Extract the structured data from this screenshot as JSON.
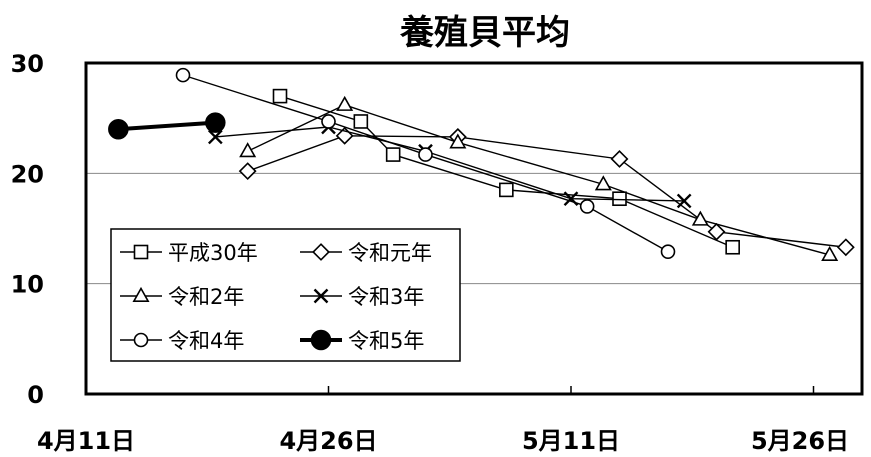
{
  "chart_data": {
    "type": "line",
    "title": "養殖貝平均",
    "xlabel": "",
    "ylabel": "",
    "ylim": [
      0,
      30
    ],
    "yticks": [
      0,
      10,
      20,
      30
    ],
    "xticks": [
      {
        "date": "04-11",
        "label": "4月11日"
      },
      {
        "date": "04-26",
        "label": "4月26日"
      },
      {
        "date": "05-11",
        "label": "5月11日"
      },
      {
        "date": "05-26",
        "label": "5月26日"
      }
    ],
    "xlim": [
      "04-11",
      "05-29"
    ],
    "grid": "horizontal",
    "legend_position": "bottom-left",
    "series": [
      {
        "name": "平成30年",
        "marker": "square",
        "color": "#000000",
        "points": [
          [
            "04-23",
            27.0
          ],
          [
            "04-28",
            24.7
          ],
          [
            "04-30",
            21.7
          ],
          [
            "05-07",
            18.5
          ],
          [
            "05-14",
            17.7
          ],
          [
            "05-21",
            13.3
          ]
        ]
      },
      {
        "name": "令和元年",
        "marker": "diamond",
        "color": "#000000",
        "points": [
          [
            "04-21",
            20.2
          ],
          [
            "04-27",
            23.4
          ],
          [
            "05-04",
            23.3
          ],
          [
            "05-14",
            21.3
          ],
          [
            "05-20",
            14.7
          ],
          [
            "05-28",
            13.3
          ]
        ]
      },
      {
        "name": "令和2年",
        "marker": "triangle",
        "color": "#000000",
        "points": [
          [
            "04-21",
            22.0
          ],
          [
            "04-27",
            26.2
          ],
          [
            "05-04",
            22.8
          ],
          [
            "05-13",
            19.0
          ],
          [
            "05-19",
            15.8
          ],
          [
            "05-27",
            12.6
          ]
        ]
      },
      {
        "name": "令和3年",
        "marker": "x",
        "color": "#000000",
        "points": [
          [
            "04-19",
            23.3
          ],
          [
            "04-26",
            24.2
          ],
          [
            "05-02",
            22.0
          ],
          [
            "05-11",
            17.7
          ],
          [
            "05-18",
            17.5
          ]
        ]
      },
      {
        "name": "令和4年",
        "marker": "circle",
        "color": "#000000",
        "points": [
          [
            "04-17",
            28.9
          ],
          [
            "04-26",
            24.7
          ],
          [
            "05-02",
            21.7
          ],
          [
            "05-12",
            17.0
          ],
          [
            "05-17",
            12.9
          ]
        ]
      },
      {
        "name": "令和5年",
        "marker": "filled-circle",
        "color": "#000000",
        "points": [
          [
            "04-13",
            24.0
          ],
          [
            "04-19",
            24.6
          ]
        ]
      }
    ]
  }
}
